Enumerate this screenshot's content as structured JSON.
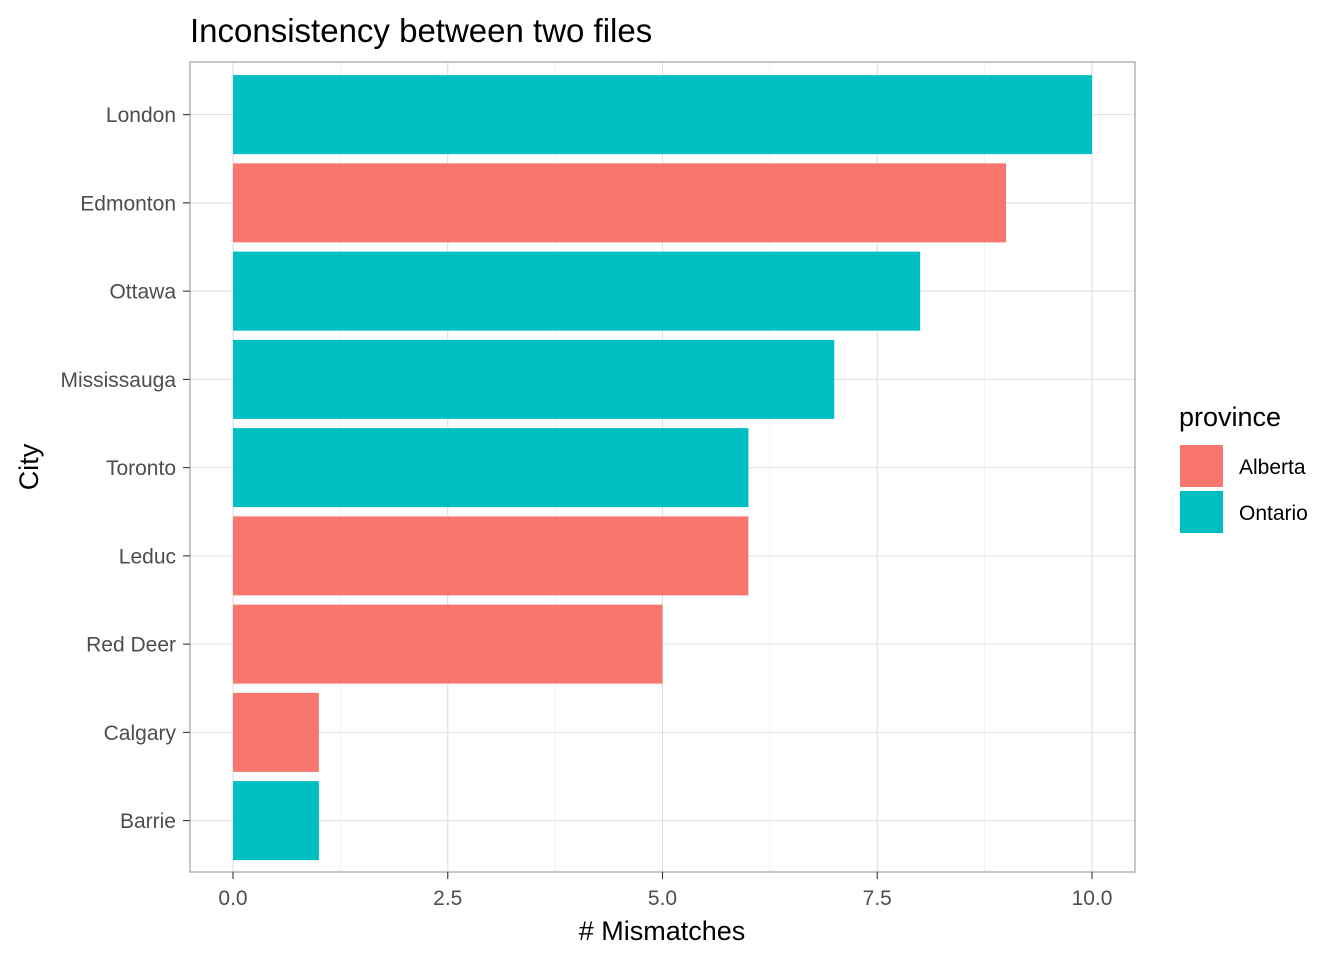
{
  "chart_data": {
    "type": "bar",
    "orientation": "horizontal",
    "title": "Inconsistency between two files",
    "xlabel": "# Mismatches",
    "ylabel": "City",
    "xlim": [
      0,
      10
    ],
    "x_ticks": [
      0,
      2.5,
      5,
      7.5,
      10
    ],
    "x_tick_labels": [
      "0.0",
      "2.5",
      "5.0",
      "7.5",
      "10.0"
    ],
    "grid": true,
    "legend": {
      "title": "province",
      "placement": "right",
      "entries": [
        {
          "label": "Alberta",
          "color": "#F8766D"
        },
        {
          "label": "Ontario",
          "color": "#00BFC4"
        }
      ]
    },
    "categories": [
      "London",
      "Edmonton",
      "Ottawa",
      "Mississauga",
      "Toronto",
      "Leduc",
      "Red Deer",
      "Calgary",
      "Barrie"
    ],
    "values": [
      10,
      9,
      8,
      7,
      6,
      6,
      5,
      1,
      1
    ],
    "groups": [
      "Ontario",
      "Alberta",
      "Ontario",
      "Ontario",
      "Ontario",
      "Alberta",
      "Alberta",
      "Alberta",
      "Ontario"
    ]
  }
}
